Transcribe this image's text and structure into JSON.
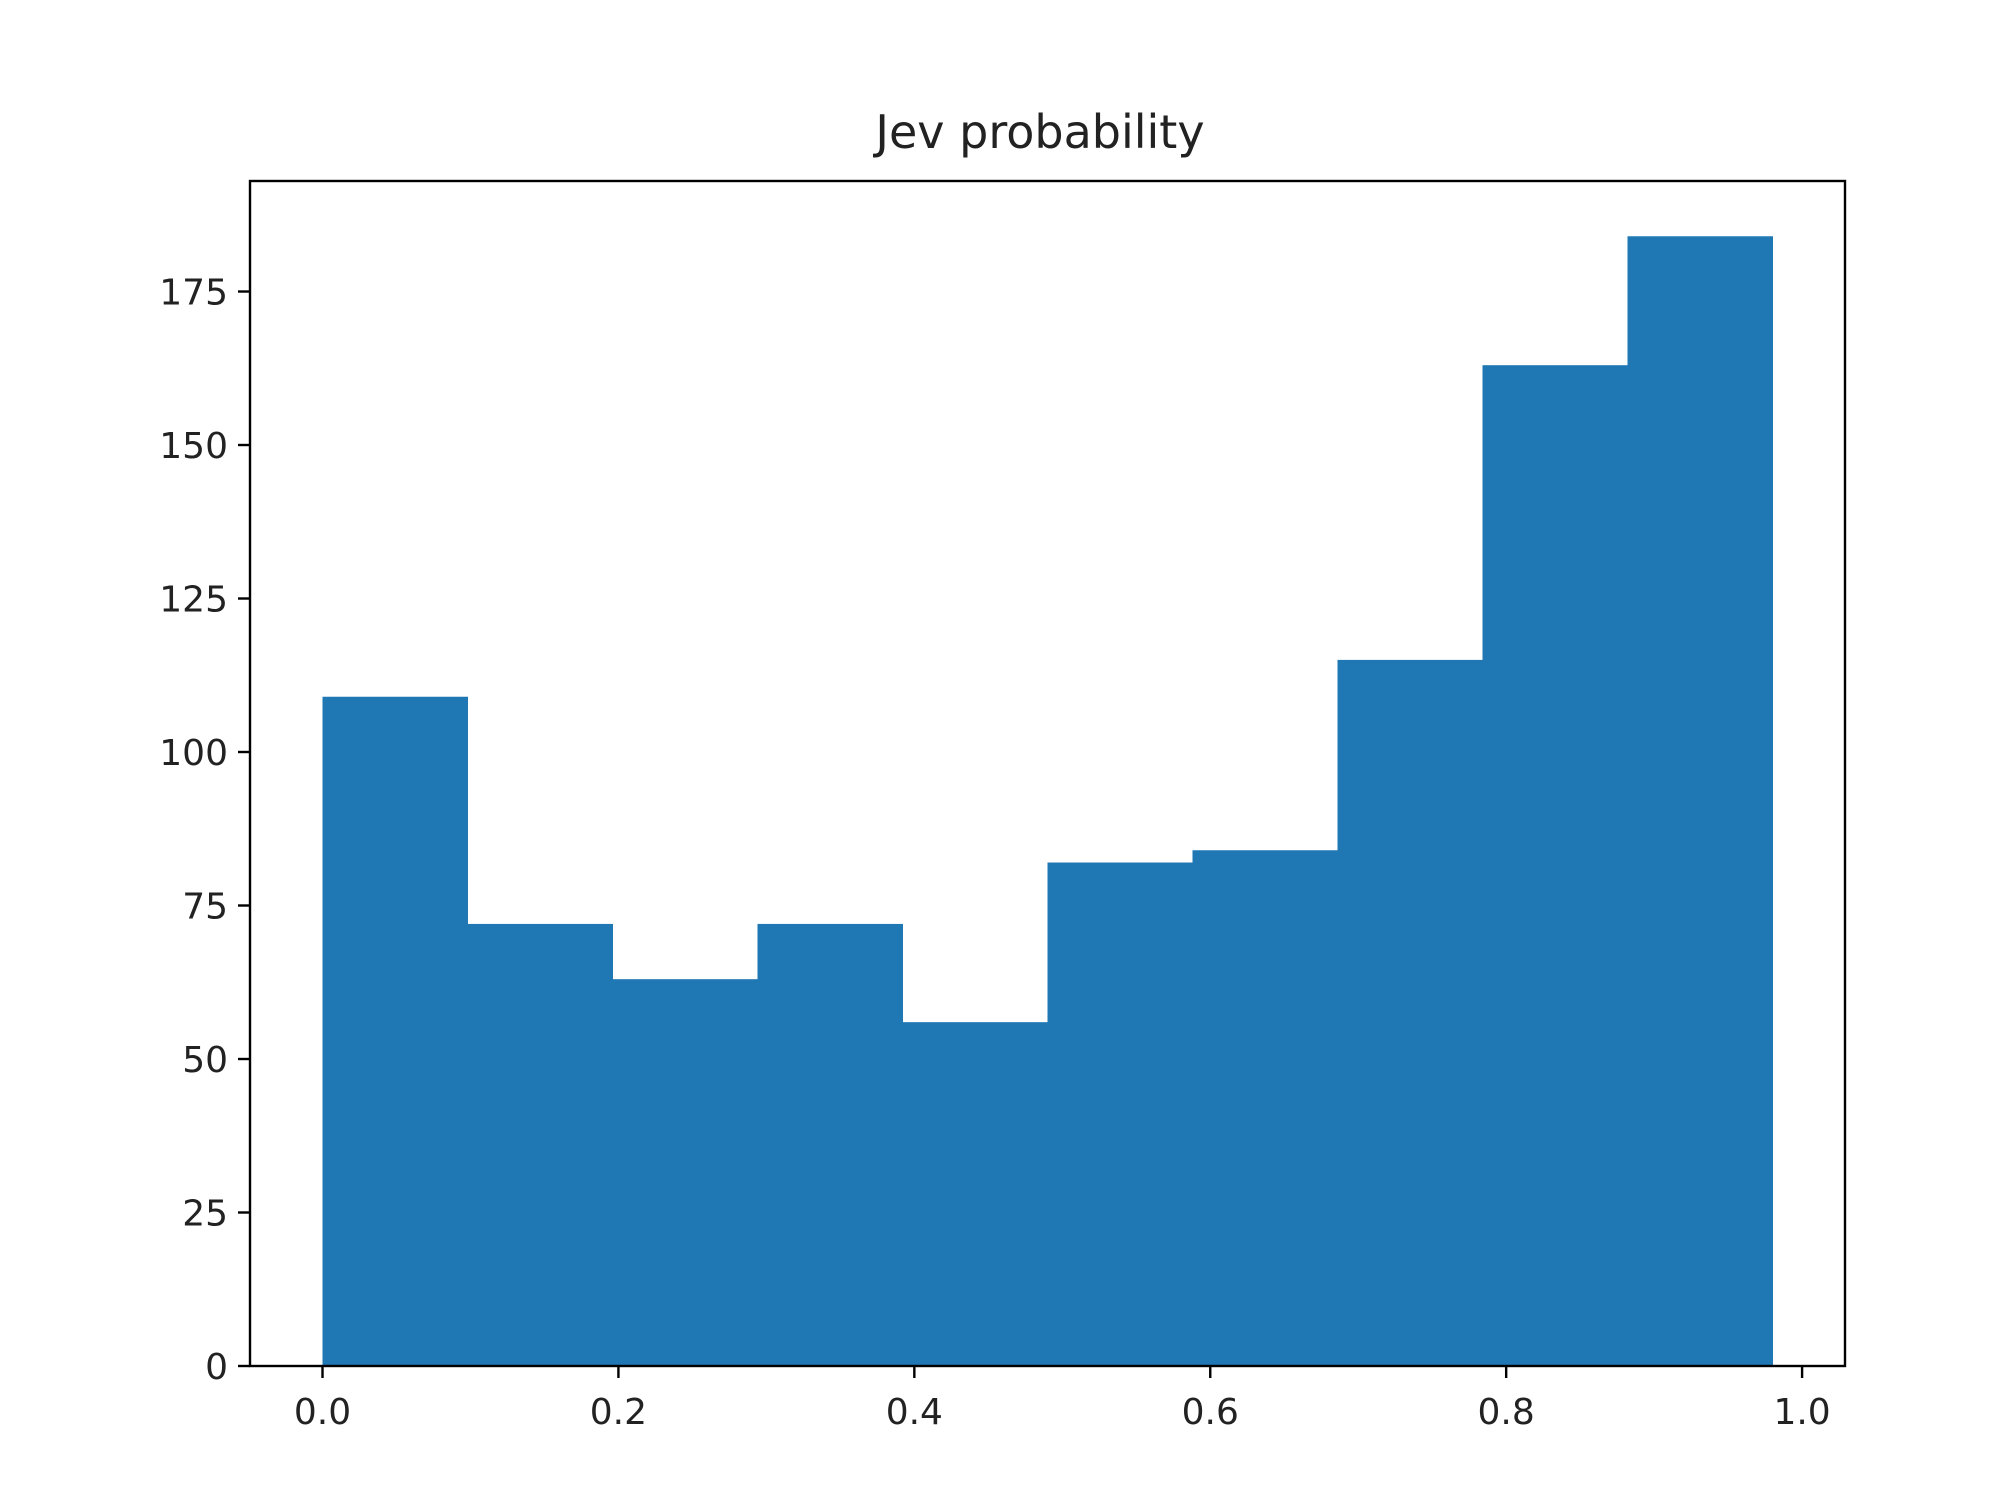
{
  "chart_data": {
    "type": "histogram",
    "title": "Jev probability",
    "xlabel": "",
    "ylabel": "",
    "bin_edges": [
      0.0,
      0.098,
      0.196,
      0.294,
      0.392,
      0.49,
      0.588,
      0.686,
      0.784,
      0.882,
      0.98
    ],
    "values": [
      109,
      72,
      63,
      72,
      56,
      82,
      84,
      115,
      163,
      184
    ],
    "xlim": [
      -0.049,
      1.029
    ],
    "ylim": [
      0,
      193
    ],
    "xticks": [
      0.0,
      0.2,
      0.4,
      0.6,
      0.8,
      1.0
    ],
    "xtick_labels": [
      "0.0",
      "0.2",
      "0.4",
      "0.6",
      "0.8",
      "1.0"
    ],
    "yticks": [
      0,
      25,
      50,
      75,
      100,
      125,
      150,
      175
    ],
    "ytick_labels": [
      "0",
      "25",
      "50",
      "75",
      "100",
      "125",
      "150",
      "175"
    ],
    "bar_color": "#1f77b4",
    "grid": false,
    "legend": "none"
  }
}
